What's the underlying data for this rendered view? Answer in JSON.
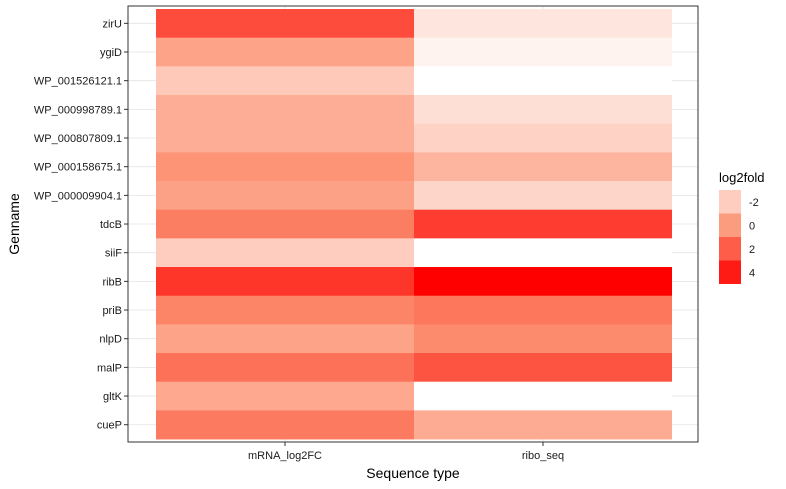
{
  "chart_data": {
    "type": "heatmap",
    "xlabel": "Sequence type",
    "ylabel": "Genname",
    "x_categories": [
      "mRNA_log2FC",
      "ribo_seq"
    ],
    "y_categories": [
      "zirU",
      "ygiD",
      "WP_001526121.1",
      "WP_000998789.1",
      "WP_000807809.1",
      "WP_000158675.1",
      "WP_000009904.1",
      "tdcB",
      "siiF",
      "ribB",
      "priB",
      "nlpD",
      "malP",
      "gltK",
      "cueP"
    ],
    "series": [
      {
        "values": [
          2.5,
          -0.3,
          -1.8,
          -0.7,
          -0.7,
          0.3,
          -0.2,
          1.0,
          -2.0,
          3.2,
          0.8,
          -0.3,
          1.4,
          -0.5,
          1.1
        ]
      },
      {
        "values": [
          -3.0,
          -3.5,
          -4.0,
          -2.7,
          -2.2,
          -1.0,
          -2.3,
          3.0,
          -4.0,
          4.8,
          1.2,
          0.6,
          2.3,
          -4.0,
          -0.6
        ]
      }
    ],
    "legend": {
      "title": "log2fold",
      "labels": [
        "-2",
        "0",
        "2",
        "4"
      ],
      "values": [
        -2,
        0,
        2,
        4
      ],
      "position": "right"
    },
    "color_scale": {
      "domain": [
        -4.0,
        4.8
      ],
      "low": "#ffffff",
      "mid": "#fc9272",
      "high": "#ff0000"
    },
    "grid": true
  }
}
